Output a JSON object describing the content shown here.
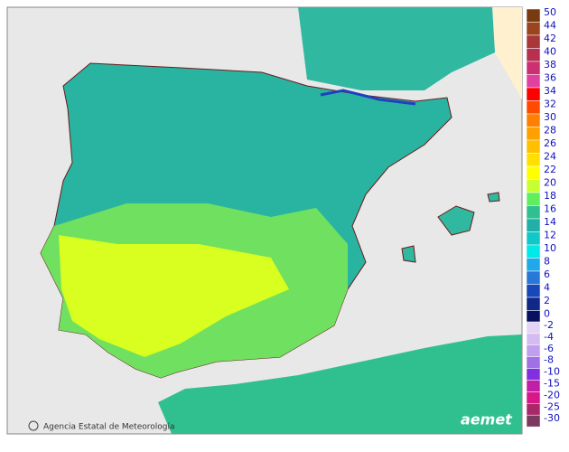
{
  "map": {
    "credit": "Agencia Estatal de Meteorología",
    "logo": "aemet"
  },
  "legend": {
    "label_color": "#1010c0",
    "upper": [
      {
        "label": 50,
        "color": "#7a3a10"
      },
      {
        "label": 44,
        "color": "#9a4520"
      },
      {
        "label": 42,
        "color": "#a83838"
      },
      {
        "label": 40,
        "color": "#b83050"
      },
      {
        "label": 38,
        "color": "#cc3070"
      },
      {
        "label": 36,
        "color": "#e040a0"
      },
      {
        "label": 34,
        "color": "#ff0000"
      },
      {
        "label": 32,
        "color": "#ff4a00"
      },
      {
        "label": 30,
        "color": "#ff8000"
      },
      {
        "label": 28,
        "color": "#ff9f00"
      },
      {
        "label": 26,
        "color": "#ffc000"
      },
      {
        "label": 24,
        "color": "#ffe000"
      },
      {
        "label": 22,
        "color": "#ffff00"
      },
      {
        "label": 20,
        "color": "#c8ff30"
      },
      {
        "label": 18,
        "color": "#60ee60"
      },
      {
        "label": 16,
        "color": "#30c090"
      },
      {
        "label": 14,
        "color": "#20b0a8"
      },
      {
        "label": 12,
        "color": "#10c8c8"
      },
      {
        "label": 10,
        "color": "#00e8e8"
      },
      {
        "label": 8,
        "color": "#20a8e8"
      },
      {
        "label": 6,
        "color": "#2878d8"
      },
      {
        "label": 4,
        "color": "#1848b8"
      },
      {
        "label": 2,
        "color": "#102888"
      },
      {
        "label": 0,
        "color": "#081060"
      }
    ],
    "lower": [
      {
        "label": -2,
        "color": "#e4d4f4"
      },
      {
        "label": -4,
        "color": "#d4bcf2"
      },
      {
        "label": -6,
        "color": "#c0a0ee"
      },
      {
        "label": -8,
        "color": "#a070e4"
      },
      {
        "label": -10,
        "color": "#8030e0"
      },
      {
        "label": -15,
        "color": "#c020a8"
      },
      {
        "label": -20,
        "color": "#d81888"
      },
      {
        "label": -25,
        "color": "#a82868"
      },
      {
        "label": -30,
        "color": "#7a3a60"
      }
    ]
  }
}
